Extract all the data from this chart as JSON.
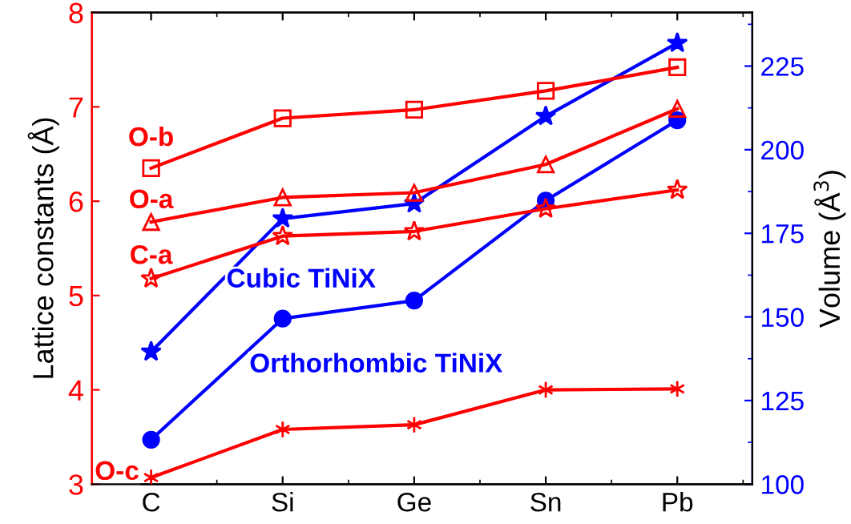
{
  "chart_data": {
    "type": "line",
    "ylabel": "Lattice constants (Å)",
    "y2label": "Volume (Å$^{3}$)",
    "categories": [
      "C",
      "Si",
      "Ge",
      "Sn",
      "Pb"
    ],
    "ylim": [
      3,
      8
    ],
    "yticks": [
      3,
      4,
      5,
      6,
      7,
      8
    ],
    "y2lim": [
      100,
      241
    ],
    "y2ticks": [
      100,
      125,
      150,
      175,
      200,
      225
    ],
    "grid": false,
    "legend": false,
    "line_style": "solid",
    "series": [
      {
        "name": "O-b",
        "color": "#ff0000",
        "marker": "square",
        "values": [
          6.35,
          6.88,
          6.97,
          7.17,
          7.42
        ]
      },
      {
        "name": "O-a",
        "color": "#ff0000",
        "marker": "triangle",
        "values": [
          5.78,
          6.04,
          6.09,
          6.39,
          6.98
        ]
      },
      {
        "name": "C-a",
        "color": "#ff0000",
        "marker": "star",
        "values": [
          5.18,
          5.63,
          5.68,
          5.92,
          6.12
        ]
      },
      {
        "name": "O-c",
        "color": "#ff0000",
        "marker": "cross",
        "values": [
          3.07,
          3.58,
          3.63,
          4.0,
          4.01
        ]
      },
      {
        "name": "Cubic TiNiX",
        "color": "#0000ff",
        "marker": "star",
        "axis": "y2",
        "values": [
          139.6,
          179.4,
          183.9,
          210,
          231.9
        ]
      },
      {
        "name": "Orthorhombic TiNiX",
        "color": "#0000ff",
        "marker": "circle",
        "axis": "y2",
        "values": [
          113.3,
          149.5,
          154.9,
          184.8,
          208.8
        ]
      }
    ]
  }
}
